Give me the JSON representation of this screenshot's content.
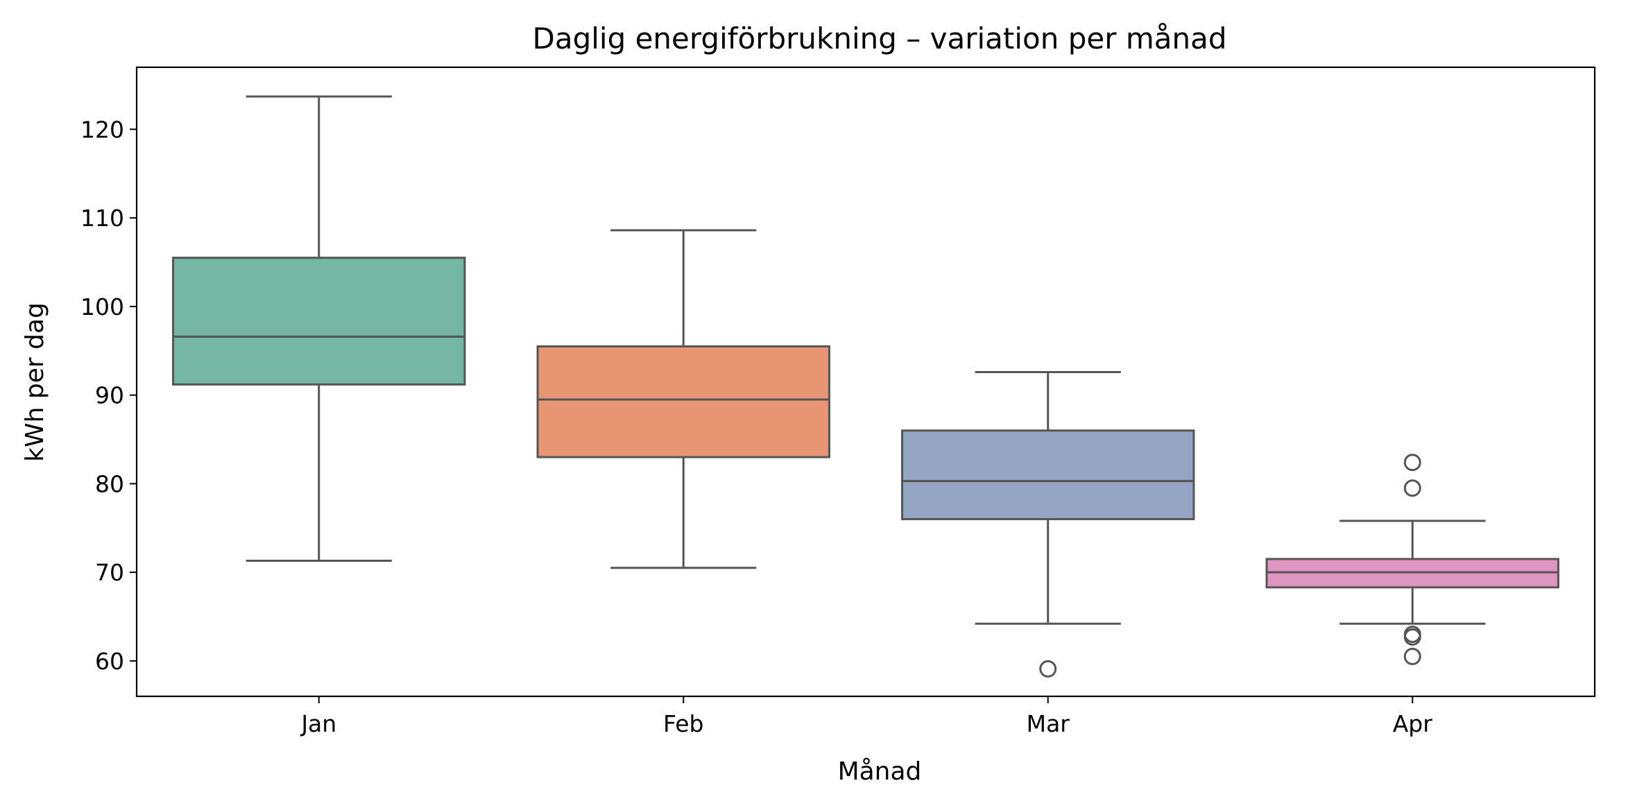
{
  "chart_data": {
    "type": "box",
    "title": "Daglig energiförbrukning – variation per månad",
    "xlabel": "Månad",
    "ylabel": "kWh per dag",
    "ylim": [
      56,
      127
    ],
    "yticks": [
      60,
      70,
      80,
      90,
      100,
      110,
      120
    ],
    "grid": false,
    "categories": [
      "Jan",
      "Feb",
      "Mar",
      "Apr"
    ],
    "boxes": [
      {
        "category": "Jan",
        "color": "#73b6a1",
        "whisker_low": 71.3,
        "q1": 91.2,
        "median": 96.6,
        "q3": 105.5,
        "whisker_high": 123.7,
        "outliers": []
      },
      {
        "category": "Feb",
        "color": "#e89574",
        "whisker_low": 70.5,
        "q1": 83.0,
        "median": 89.5,
        "q3": 95.5,
        "whisker_high": 108.6,
        "outliers": []
      },
      {
        "category": "Mar",
        "color": "#94a5c4",
        "whisker_low": 64.2,
        "q1": 76.0,
        "median": 80.3,
        "q3": 86.0,
        "whisker_high": 92.6,
        "outliers": [
          59.1
        ]
      },
      {
        "category": "Apr",
        "color": "#de96c1",
        "whisker_low": 64.2,
        "q1": 68.3,
        "median": 70.0,
        "q3": 71.5,
        "whisker_high": 75.8,
        "outliers": [
          82.4,
          79.5,
          63.0,
          62.7,
          60.5
        ]
      }
    ]
  }
}
